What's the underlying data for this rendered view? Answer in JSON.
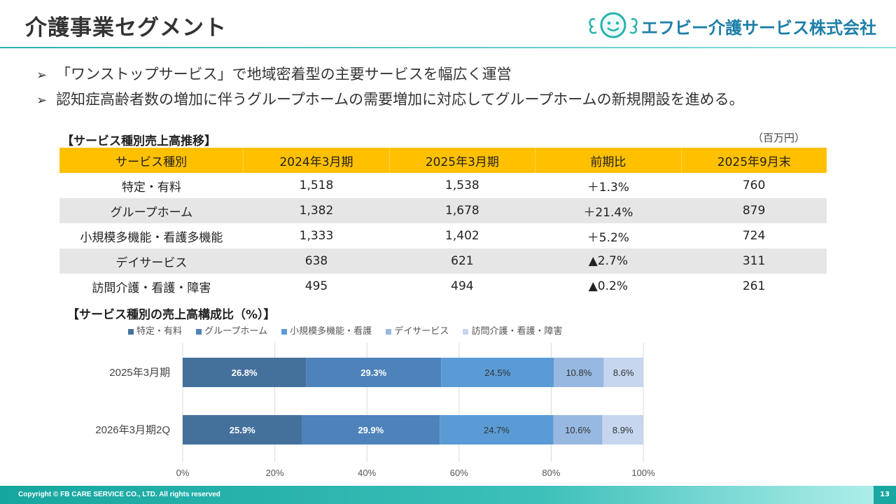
{
  "header": {
    "title": "介護事業セグメント",
    "company_name": "エフビー介護サービス株式会社"
  },
  "bullets": [
    "「ワンストップサービス」で地域密着型の主要サービスを幅広く運営",
    "認知症高齢者数の増加に伴うグループホームの需要増加に対応してグループホームの新規開設を進める。"
  ],
  "table": {
    "title": "【サービス種別売上高推移】",
    "unit": "（百万円）",
    "headers": [
      "サービス種別",
      "2024年3月期",
      "2025年3月期",
      "前期比",
      "2025年9月末"
    ],
    "rows": [
      [
        "特定・有料",
        "1,518",
        "1,538",
        "＋1.3%",
        "760"
      ],
      [
        "グループホーム",
        "1,382",
        "1,678",
        "＋21.4%",
        "879"
      ],
      [
        "小規模多機能・看護多機能",
        "1,333",
        "1,402",
        "＋5.2%",
        "724"
      ],
      [
        "デイサービス",
        "638",
        "621",
        "▲2.7%",
        "311"
      ],
      [
        "訪問介護・看護・障害",
        "495",
        "494",
        "▲0.2%",
        "261"
      ]
    ]
  },
  "chart_title": "【サービス種別の売上高構成比（%）】",
  "chart_data": {
    "type": "bar",
    "orientation": "horizontal-stacked-100",
    "categories": [
      "2025年3月期",
      "2026年3月期2Q"
    ],
    "series": [
      {
        "name": "特定・有料",
        "color": "#44709c",
        "values": [
          26.8,
          25.9
        ],
        "labels": [
          "26.8%",
          "25.9%"
        ]
      },
      {
        "name": "グループホーム",
        "color": "#4d82bb",
        "values": [
          29.3,
          29.9
        ],
        "labels": [
          "29.3%",
          "29.9%"
        ]
      },
      {
        "name": "小規模多機能・看護",
        "color": "#5a9bd5",
        "values": [
          24.5,
          24.7
        ],
        "labels": [
          "24.5%",
          "24.7%"
        ]
      },
      {
        "name": "デイサービス",
        "color": "#97b8e0",
        "values": [
          10.8,
          10.6
        ],
        "labels": [
          "10.8%",
          "10.6%"
        ]
      },
      {
        "name": "訪問介護・看護・障害",
        "color": "#c5d6ee",
        "values": [
          8.6,
          8.9
        ],
        "labels": [
          "8.6%",
          "8.9%"
        ]
      }
    ],
    "x_ticks": [
      "0%",
      "20%",
      "40%",
      "60%",
      "80%",
      "100%"
    ],
    "xlim": [
      0,
      100
    ],
    "legend": "top",
    "grid": true
  },
  "footer": {
    "copyright": "Copyright © FB CARE SERVICE CO., LTD. All rights reserved",
    "page": "13"
  }
}
